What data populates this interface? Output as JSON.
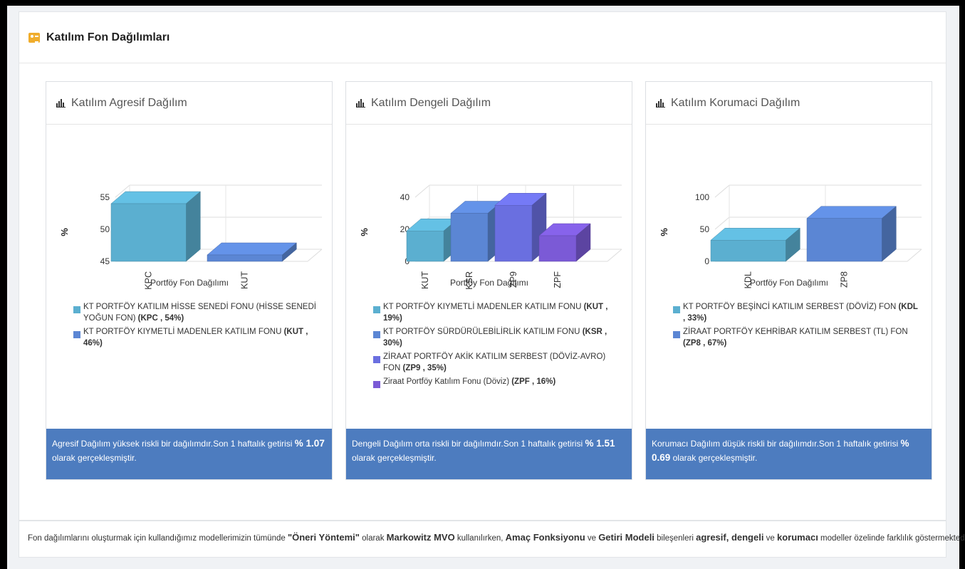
{
  "page": {
    "title": "Katılım Fon Dağılımları"
  },
  "cards": [
    {
      "title": "Katılım Agresif Dağılım",
      "chart_data": {
        "type": "bar",
        "categories": [
          "KPC",
          "KUT"
        ],
        "values": [
          54,
          46
        ],
        "colors": [
          "#5bafd0",
          "#5b86d4"
        ],
        "ylabel": "%",
        "xlabel": "Portföy Fon Dağılımı",
        "ylim": [
          45,
          55
        ],
        "yticks": [
          45,
          50,
          55
        ]
      },
      "legend": [
        {
          "name": "KT PORTFÖY KATILIM HİSSE SENEDİ FONU (HİSSE SENEDİ YOĞUN FON)",
          "code": "(KPC , 54%)",
          "color": "#5bafd0"
        },
        {
          "name": "KT PORTFÖY KIYMETLİ MADENLER KATILIM FONU",
          "code": "(KUT , 46%)",
          "color": "#5b86d4"
        }
      ],
      "footer": {
        "text": "Agresif Dağılım yüksek riskli bir dağılımdır.Son 1 haftalık getirisi ",
        "value": "% 1.07",
        "tail": " olarak gerçekleşmiştir."
      }
    },
    {
      "title": "Katılım Dengeli Dağılım",
      "chart_data": {
        "type": "bar",
        "categories": [
          "KUT",
          "KSR",
          "ZP9",
          "ZPF"
        ],
        "values": [
          19,
          30,
          35,
          16
        ],
        "colors": [
          "#5bafd0",
          "#5b86d4",
          "#6a6fe0",
          "#7b5ad6"
        ],
        "ylabel": "%",
        "xlabel": "Portföy Fon Dağılımı",
        "ylim": [
          0,
          40
        ],
        "yticks": [
          0,
          20,
          40
        ]
      },
      "legend": [
        {
          "name": "KT PORTFÖY KIYMETLİ MADENLER KATILIM FONU",
          "code": "(KUT , 19%)",
          "color": "#5bafd0"
        },
        {
          "name": "KT PORTFÖY SÜRDÜRÜLEBİLİRLİK KATILIM FONU",
          "code": "(KSR , 30%)",
          "color": "#5b86d4"
        },
        {
          "name": "ZİRAAT PORTFÖY AKİK KATILIM SERBEST (DÖVİZ-AVRO) FON",
          "code": "(ZP9 , 35%)",
          "color": "#6a6fe0"
        },
        {
          "name": "Ziraat Portföy Katılım Fonu (Döviz)",
          "code": "(ZPF , 16%)",
          "color": "#7b5ad6"
        }
      ],
      "footer": {
        "text": "Dengeli Dağılım orta riskli bir dağılımdır.Son 1 haftalık getirisi ",
        "value": "% 1.51",
        "tail": " olarak gerçekleşmiştir."
      }
    },
    {
      "title": "Katılım Korumaci Dağılım",
      "chart_data": {
        "type": "bar",
        "categories": [
          "KDL",
          "ZP8"
        ],
        "values": [
          33,
          67
        ],
        "colors": [
          "#5bafd0",
          "#5b86d4"
        ],
        "ylabel": "%",
        "xlabel": "Portföy Fon Dağılımı",
        "ylim": [
          0,
          100
        ],
        "yticks": [
          0,
          50,
          100
        ]
      },
      "legend": [
        {
          "name": "KT PORTFÖY BEŞİNCİ KATILIM SERBEST (DÖVİZ) FON",
          "code": "(KDL , 33%)",
          "color": "#5bafd0"
        },
        {
          "name": "ZİRAAT PORTFÖY KEHRİBAR KATILIM SERBEST (TL) FON",
          "code": "(ZP8 , 67%)",
          "color": "#5b86d4"
        }
      ],
      "footer": {
        "text": "Korumacı Dağılım düşük riskli bir dağılımdır.Son 1 haftalık getirisi ",
        "value": "% 0.69",
        "tail": " olarak gerçekleşmiştir."
      }
    }
  ],
  "note": {
    "parts": [
      {
        "t": "Fon dağılımlarını oluşturmak için kullandığımız modellerimizin tümünde ",
        "b": false
      },
      {
        "t": "\"Öneri Yöntemi\"",
        "b": true
      },
      {
        "t": " olarak ",
        "b": false
      },
      {
        "t": "Markowitz MVO",
        "b": true
      },
      {
        "t": " kullanılırken, ",
        "b": false
      },
      {
        "t": "Amaç Fonksiyonu",
        "b": true
      },
      {
        "t": " ve ",
        "b": false
      },
      {
        "t": "Getiri Modeli",
        "b": true
      },
      {
        "t": " bileşenleri ",
        "b": false
      },
      {
        "t": "agresif, dengeli",
        "b": true
      },
      {
        "t": " ve ",
        "b": false
      },
      {
        "t": "korumacı",
        "b": true
      },
      {
        "t": " modeller özelinde farklılık göstermektedir.",
        "b": false
      }
    ]
  }
}
